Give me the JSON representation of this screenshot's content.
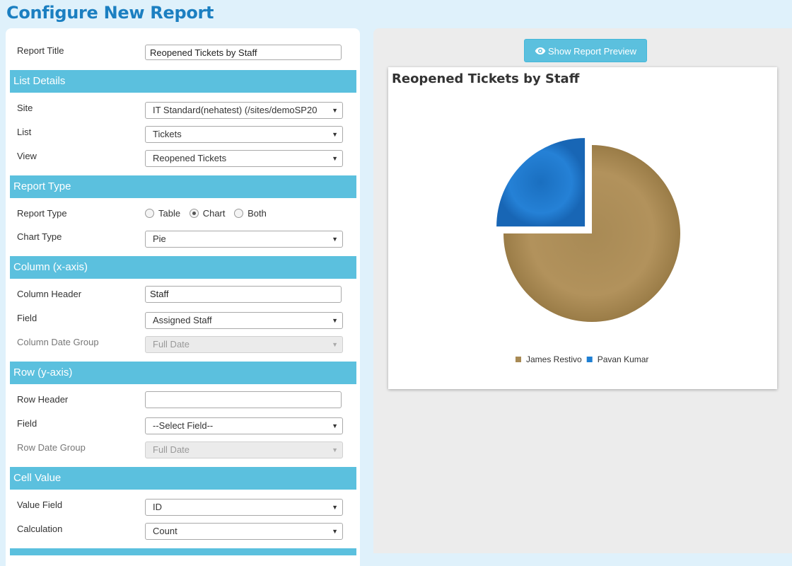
{
  "page_title": "Configure New Report",
  "report_title": {
    "label": "Report Title",
    "value": "Reopened Tickets by Staff"
  },
  "sections": {
    "list_details": "List Details",
    "report_type": "Report Type",
    "column": "Column (x-axis)",
    "row": "Row (y-axis)",
    "cell_value": "Cell Value"
  },
  "list_details": {
    "site_label": "Site",
    "site_value": "IT Standard(nehatest) (/sites/demoSP20",
    "list_label": "List",
    "list_value": "Tickets",
    "view_label": "View",
    "view_value": "Reopened Tickets"
  },
  "report_type": {
    "label": "Report Type",
    "options": [
      "Table",
      "Chart",
      "Both"
    ],
    "selected": "Chart",
    "chart_type_label": "Chart Type",
    "chart_type_value": "Pie"
  },
  "column": {
    "header_label": "Column Header",
    "header_value": "Staff",
    "field_label": "Field",
    "field_value": "Assigned Staff",
    "date_group_label": "Column Date Group",
    "date_group_value": "Full Date"
  },
  "row": {
    "header_label": "Row Header",
    "header_value": "",
    "field_label": "Field",
    "field_value": "--Select Field--",
    "date_group_label": "Row Date Group",
    "date_group_value": "Full Date"
  },
  "cell_value": {
    "value_field_label": "Value Field",
    "value_field_value": "ID",
    "calculation_label": "Calculation",
    "calculation_value": "Count"
  },
  "preview": {
    "button_label": "Show Report Preview",
    "icon": "eye-icon"
  },
  "chart_data": {
    "type": "pie",
    "title": "Reopened Tickets by Staff",
    "legend_position": "bottom",
    "series": [
      {
        "name": "James Restivo",
        "value": 75,
        "color": "#a88a55"
      },
      {
        "name": "Pavan Kumar",
        "value": 25,
        "color": "#1e7fd3"
      }
    ]
  }
}
